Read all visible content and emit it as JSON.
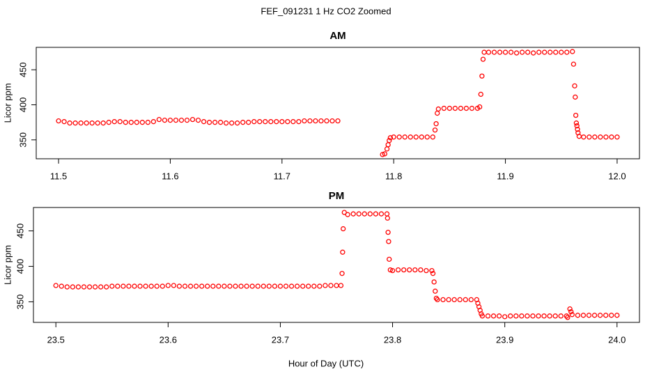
{
  "title": "FEF_091231  1 Hz CO2 Zoomed",
  "x_label": "Hour of Day (UTC)",
  "chart_data": [
    {
      "type": "scatter",
      "title": "AM",
      "y_label": "Licor ppm",
      "color": "#ff0000",
      "xlim": [
        11.48,
        12.02
      ],
      "ylim": [
        323,
        482
      ],
      "xticks": [
        11.5,
        11.6,
        11.7,
        11.8,
        11.9,
        {
          "value": 12,
          "label": "12.0"
        }
      ],
      "yticks": [
        350,
        400,
        450
      ],
      "x": [
        11.5,
        11.505,
        11.51,
        11.515,
        11.52,
        11.525,
        11.53,
        11.535,
        11.54,
        11.545,
        11.55,
        11.555,
        11.56,
        11.565,
        11.57,
        11.575,
        11.58,
        11.585,
        11.59,
        11.595,
        11.6,
        11.605,
        11.61,
        11.615,
        11.62,
        11.625,
        11.63,
        11.635,
        11.64,
        11.645,
        11.65,
        11.655,
        11.66,
        11.665,
        11.67,
        11.675,
        11.68,
        11.685,
        11.69,
        11.695,
        11.7,
        11.705,
        11.71,
        11.715,
        11.72,
        11.725,
        11.73,
        11.735,
        11.74,
        11.745,
        11.75,
        11.79,
        11.792,
        11.794,
        11.795,
        11.796,
        11.797,
        11.8,
        11.805,
        11.81,
        11.815,
        11.82,
        11.825,
        11.83,
        11.835,
        11.837,
        11.838,
        11.839,
        11.84,
        11.845,
        11.85,
        11.855,
        11.86,
        11.865,
        11.87,
        11.875,
        11.877,
        11.878,
        11.879,
        11.88,
        11.881,
        11.885,
        11.89,
        11.895,
        11.9,
        11.905,
        11.91,
        11.915,
        11.92,
        11.925,
        11.93,
        11.935,
        11.94,
        11.945,
        11.95,
        11.955,
        11.96,
        11.961,
        11.962,
        11.9625,
        11.963,
        11.9635,
        11.964,
        11.9645,
        11.965,
        11.966,
        11.97,
        11.975,
        11.98,
        11.985,
        11.99,
        11.995,
        12
      ],
      "values": [
        377,
        376,
        374,
        374,
        374,
        374,
        374,
        374,
        374,
        375,
        376,
        376,
        375,
        375,
        375,
        375,
        375,
        376,
        379,
        378,
        378,
        378,
        378,
        378,
        379,
        378,
        376,
        375,
        375,
        375,
        374,
        374,
        374,
        375,
        375,
        376,
        376,
        376,
        376,
        376,
        376,
        376,
        376,
        376,
        377,
        377,
        377,
        377,
        377,
        377,
        377,
        329,
        330,
        337,
        343,
        349,
        353,
        354,
        354,
        354,
        354,
        354,
        354,
        354,
        354,
        364,
        373,
        388,
        394,
        395,
        395,
        395,
        395,
        395,
        395,
        395,
        397,
        415,
        441,
        465,
        475,
        475,
        475,
        475,
        475,
        475,
        474,
        475,
        475,
        474,
        475,
        475,
        475,
        475,
        475,
        475,
        476,
        458,
        427,
        411,
        385,
        374,
        370,
        365,
        360,
        355,
        354,
        354,
        354,
        354,
        354,
        354,
        354
      ]
    },
    {
      "type": "scatter",
      "title": "PM",
      "y_label": "Licor ppm",
      "color": "#ff0000",
      "xlim": [
        23.48,
        24.02
      ],
      "ylim": [
        321,
        483
      ],
      "xticks": [
        23.5,
        23.6,
        23.7,
        23.8,
        23.9,
        {
          "value": 24,
          "label": "24.0"
        }
      ],
      "yticks": [
        350,
        400,
        450
      ],
      "x": [
        23.5,
        23.505,
        23.51,
        23.515,
        23.52,
        23.525,
        23.53,
        23.535,
        23.54,
        23.545,
        23.55,
        23.555,
        23.56,
        23.565,
        23.57,
        23.575,
        23.58,
        23.585,
        23.59,
        23.595,
        23.6,
        23.605,
        23.61,
        23.615,
        23.62,
        23.625,
        23.63,
        23.635,
        23.64,
        23.645,
        23.65,
        23.655,
        23.66,
        23.665,
        23.67,
        23.675,
        23.68,
        23.685,
        23.69,
        23.695,
        23.7,
        23.705,
        23.71,
        23.715,
        23.72,
        23.725,
        23.73,
        23.735,
        23.74,
        23.745,
        23.75,
        23.754,
        23.755,
        23.7555,
        23.756,
        23.757,
        23.76,
        23.765,
        23.77,
        23.775,
        23.78,
        23.785,
        23.79,
        23.795,
        23.7955,
        23.796,
        23.7965,
        23.797,
        23.798,
        23.8,
        23.805,
        23.81,
        23.815,
        23.82,
        23.825,
        23.83,
        23.835,
        23.836,
        23.837,
        23.838,
        23.839,
        23.84,
        23.845,
        23.85,
        23.855,
        23.86,
        23.865,
        23.87,
        23.875,
        23.876,
        23.877,
        23.878,
        23.879,
        23.88,
        23.885,
        23.89,
        23.895,
        23.9,
        23.905,
        23.91,
        23.915,
        23.92,
        23.925,
        23.93,
        23.935,
        23.94,
        23.945,
        23.95,
        23.955,
        23.956,
        23.958,
        23.959,
        23.96,
        23.965,
        23.97,
        23.975,
        23.98,
        23.985,
        23.99,
        23.995,
        24
      ],
      "values": [
        373,
        372,
        371,
        371,
        371,
        371,
        371,
        371,
        371,
        371,
        372,
        372,
        372,
        372,
        372,
        372,
        372,
        372,
        372,
        372,
        373,
        373,
        372,
        372,
        372,
        372,
        372,
        372,
        372,
        372,
        372,
        372,
        372,
        372,
        372,
        372,
        372,
        372,
        372,
        372,
        372,
        372,
        372,
        372,
        372,
        372,
        372,
        372,
        373,
        373,
        373,
        373,
        390,
        420,
        453,
        476,
        473,
        474,
        474,
        474,
        474,
        474,
        474,
        474,
        468,
        448,
        435,
        410,
        395,
        394,
        395,
        395,
        395,
        395,
        395,
        394,
        394,
        390,
        378,
        365,
        355,
        353,
        353,
        353,
        353,
        353,
        353,
        353,
        353,
        348,
        343,
        338,
        333,
        330,
        330,
        330,
        330,
        329,
        330,
        330,
        330,
        330,
        330,
        330,
        330,
        330,
        330,
        330,
        330,
        328,
        340,
        336,
        332,
        331,
        331,
        331,
        331,
        331,
        331,
        331,
        331
      ]
    }
  ]
}
